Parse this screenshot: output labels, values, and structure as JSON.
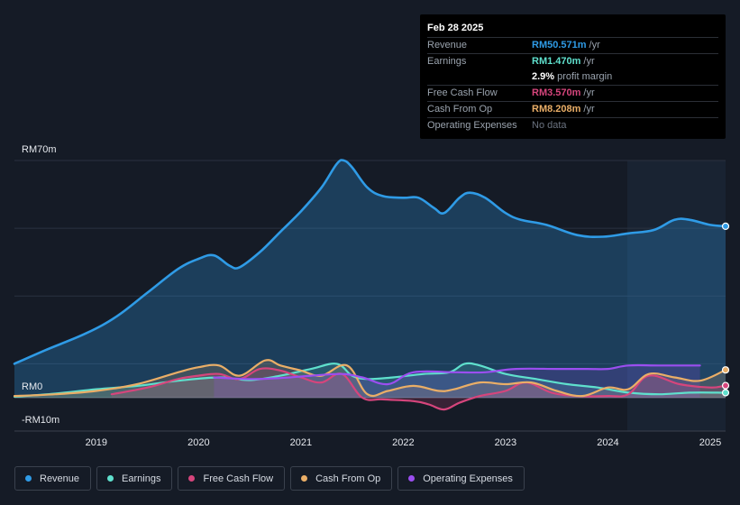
{
  "tooltip": {
    "date": "Feb 28 2025",
    "rows": [
      {
        "label": "Revenue",
        "value": "RM50.571m",
        "unit": "/yr",
        "color": "#2f9be6"
      },
      {
        "label": "Earnings",
        "value": "RM1.470m",
        "unit": "/yr",
        "color": "#5fe0cd"
      },
      {
        "label": "",
        "value": "2.9%",
        "unit": "profit margin",
        "color": "#ffffff"
      },
      {
        "label": "Free Cash Flow",
        "value": "RM3.570m",
        "unit": "/yr",
        "color": "#d6457c"
      },
      {
        "label": "Cash From Op",
        "value": "RM8.208m",
        "unit": "/yr",
        "color": "#eaae67"
      },
      {
        "label": "Operating Expenses",
        "value": "No data",
        "unit": "",
        "color": "#6b7380"
      }
    ]
  },
  "legend": [
    {
      "label": "Revenue",
      "color": "#2f9be6"
    },
    {
      "label": "Earnings",
      "color": "#5fe0cd"
    },
    {
      "label": "Free Cash Flow",
      "color": "#d6457c"
    },
    {
      "label": "Cash From Op",
      "color": "#eaae67"
    },
    {
      "label": "Operating Expenses",
      "color": "#9b4ef0"
    }
  ],
  "chart_data": {
    "type": "line",
    "title": "",
    "xlabel": "",
    "ylabel": "",
    "y_axis_labels": [
      "RM70m",
      "RM0",
      "-RM10m"
    ],
    "ylim": [
      -10,
      70
    ],
    "xlim": [
      2018.2,
      2025.15
    ],
    "x_ticks": [
      2019,
      2020,
      2021,
      2022,
      2023,
      2024,
      2025
    ],
    "x_tick_labels": [
      "2019",
      "2020",
      "2021",
      "2022",
      "2023",
      "2024",
      "2025"
    ],
    "series": [
      {
        "name": "Revenue",
        "color": "#2f9be6",
        "x": [
          2018.2,
          2018.5,
          2018.9,
          2019.2,
          2019.5,
          2019.8,
          2020.0,
          2020.15,
          2020.3,
          2020.4,
          2020.6,
          2020.8,
          2021.0,
          2021.2,
          2021.35,
          2021.42,
          2021.5,
          2021.65,
          2021.8,
          2022.0,
          2022.15,
          2022.3,
          2022.4,
          2022.55,
          2022.65,
          2022.8,
          2023.0,
          2023.15,
          2023.4,
          2023.7,
          2023.95,
          2024.2,
          2024.45,
          2024.65,
          2024.8,
          2025.0,
          2025.15
        ],
        "y": [
          10,
          14,
          19,
          24,
          31,
          38,
          41,
          42,
          39,
          38.5,
          43,
          49,
          55,
          62,
          69,
          70,
          68,
          62,
          59.5,
          59,
          59,
          56,
          54.5,
          59,
          60.5,
          59,
          54.5,
          52.5,
          51,
          48,
          47.5,
          48.5,
          49.5,
          52.5,
          52.5,
          51,
          50.6
        ]
      },
      {
        "name": "Earnings",
        "color": "#5fe0cd",
        "x": [
          2018.2,
          2018.6,
          2019.0,
          2019.4,
          2019.8,
          2020.2,
          2020.5,
          2020.8,
          2021.1,
          2021.35,
          2021.5,
          2021.65,
          2021.9,
          2022.2,
          2022.45,
          2022.6,
          2022.75,
          2023.0,
          2023.3,
          2023.6,
          2023.9,
          2024.2,
          2024.5,
          2024.8,
          2025.15
        ],
        "y": [
          0.3,
          1.2,
          2.5,
          3.5,
          5.0,
          6.0,
          5.2,
          6.5,
          8.5,
          10.0,
          6.5,
          5.5,
          6.0,
          7.0,
          7.5,
          10.0,
          9.5,
          7.0,
          5.5,
          4.0,
          3.0,
          1.5,
          1.0,
          1.5,
          1.47
        ]
      },
      {
        "name": "Free Cash Flow",
        "color": "#d6457c",
        "x": [
          2019.15,
          2019.5,
          2019.8,
          2020.0,
          2020.2,
          2020.4,
          2020.6,
          2020.8,
          2021.0,
          2021.2,
          2021.4,
          2021.6,
          2021.8,
          2022.1,
          2022.25,
          2022.4,
          2022.55,
          2022.75,
          2023.0,
          2023.2,
          2023.45,
          2023.7,
          2024.0,
          2024.2,
          2024.4,
          2024.7,
          2025.0,
          2025.15
        ],
        "y": [
          1.0,
          3.0,
          5.5,
          6.5,
          7.0,
          5.5,
          8.5,
          8.0,
          6.0,
          4.5,
          7.0,
          0.0,
          -0.5,
          -1.0,
          -2.0,
          -3.5,
          -1.5,
          0.5,
          2.0,
          4.5,
          1.5,
          0.5,
          0.5,
          1.0,
          6.5,
          4.0,
          3.0,
          3.57
        ]
      },
      {
        "name": "Cash From Op",
        "color": "#eaae67",
        "x": [
          2018.2,
          2018.6,
          2019.0,
          2019.4,
          2019.8,
          2020.0,
          2020.2,
          2020.4,
          2020.65,
          2020.8,
          2021.0,
          2021.2,
          2021.45,
          2021.65,
          2021.85,
          2022.1,
          2022.35,
          2022.5,
          2022.75,
          2023.0,
          2023.25,
          2023.5,
          2023.75,
          2024.0,
          2024.2,
          2024.4,
          2024.65,
          2024.9,
          2025.15
        ],
        "y": [
          0.5,
          1.0,
          2.0,
          4.0,
          7.5,
          9.0,
          9.5,
          6.5,
          11.0,
          9.5,
          8.0,
          6.5,
          9.5,
          1.0,
          2.0,
          3.5,
          2.0,
          2.5,
          4.5,
          4.0,
          4.5,
          2.0,
          0.5,
          3.0,
          2.5,
          7.0,
          6.0,
          5.0,
          8.2
        ]
      },
      {
        "name": "Operating Expenses",
        "color": "#9b4ef0",
        "x": [
          2020.15,
          2020.5,
          2020.8,
          2021.1,
          2021.4,
          2021.6,
          2021.85,
          2022.1,
          2022.5,
          2022.8,
          2023.1,
          2023.5,
          2023.8,
          2024.0,
          2024.2,
          2024.5,
          2024.9
        ],
        "y": [
          6.0,
          5.5,
          5.8,
          6.5,
          7.0,
          6.0,
          4.0,
          7.5,
          7.5,
          7.5,
          8.5,
          8.5,
          8.5,
          8.5,
          9.5,
          9.5,
          9.5
        ]
      }
    ]
  }
}
